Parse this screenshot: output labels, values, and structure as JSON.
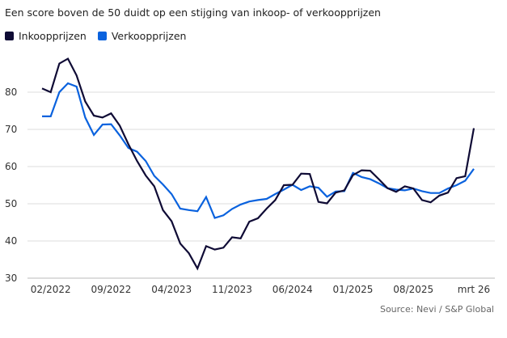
{
  "title": "Een score boven de 50 duidt op een stijging van inkoop- of verkoopprijzen",
  "source": "Source:  Nevi / S&P Global",
  "chart_data": {
    "type": "line",
    "title": "Een score boven de 50 duidt op een stijging van inkoop- of verkoopprijzen",
    "xlabel": "",
    "ylabel": "",
    "ylim": [
      30,
      90
    ],
    "yticks": [
      30,
      40,
      50,
      60,
      70,
      80
    ],
    "grid": true,
    "legend_position": "top-left",
    "x_start": "01/2022",
    "x_end": "03/2026",
    "x_step": "month",
    "xtick_labels": [
      {
        "index": 1,
        "label": "02/2022"
      },
      {
        "index": 8,
        "label": "09/2022"
      },
      {
        "index": 15,
        "label": "04/2023"
      },
      {
        "index": 22,
        "label": "11/2023"
      },
      {
        "index": 29,
        "label": "06/2024"
      },
      {
        "index": 36,
        "label": "01/2025"
      },
      {
        "index": 43,
        "label": "08/2025"
      },
      {
        "index": 50,
        "label": "mrt 26"
      }
    ],
    "series": [
      {
        "name": "Inkoopprijzen",
        "color": "#0f0b35",
        "values": [
          81,
          80,
          87.7,
          89,
          84.5,
          77.5,
          73.7,
          73.2,
          74.3,
          71,
          66,
          61.5,
          57.6,
          54.7,
          48.3,
          45.3,
          39.3,
          36.7,
          32.6,
          38.6,
          37.7,
          38.2,
          41,
          40.7,
          45.2,
          46.1,
          48.7,
          51,
          55,
          55.1,
          58.1,
          58,
          50.5,
          50.1,
          53,
          53.6,
          57.7,
          59,
          58.9,
          56.6,
          54.2,
          53.2,
          54.7,
          54.1,
          51,
          50.4,
          52.2,
          53,
          56.9,
          57.4,
          70.3
        ]
      },
      {
        "name": "Verkoopprijzen",
        "color": "#0a62de",
        "values": [
          73.5,
          73.5,
          80,
          82.4,
          81.5,
          73.2,
          68.5,
          71.3,
          71.4,
          68.4,
          65,
          64,
          61.5,
          57.5,
          55.2,
          52.6,
          48.7,
          48.3,
          48,
          51.8,
          46.2,
          46.9,
          48.6,
          49.8,
          50.6,
          51,
          51.3,
          52.6,
          53.8,
          55.1,
          53.7,
          54.7,
          54.3,
          51.9,
          53.3,
          53.4,
          58.3,
          57.2,
          56.6,
          55.5,
          54.2,
          53.8,
          53.6,
          54.1,
          53.4,
          52.9,
          52.9,
          54.1,
          55,
          56.2,
          59.4
        ]
      }
    ]
  }
}
